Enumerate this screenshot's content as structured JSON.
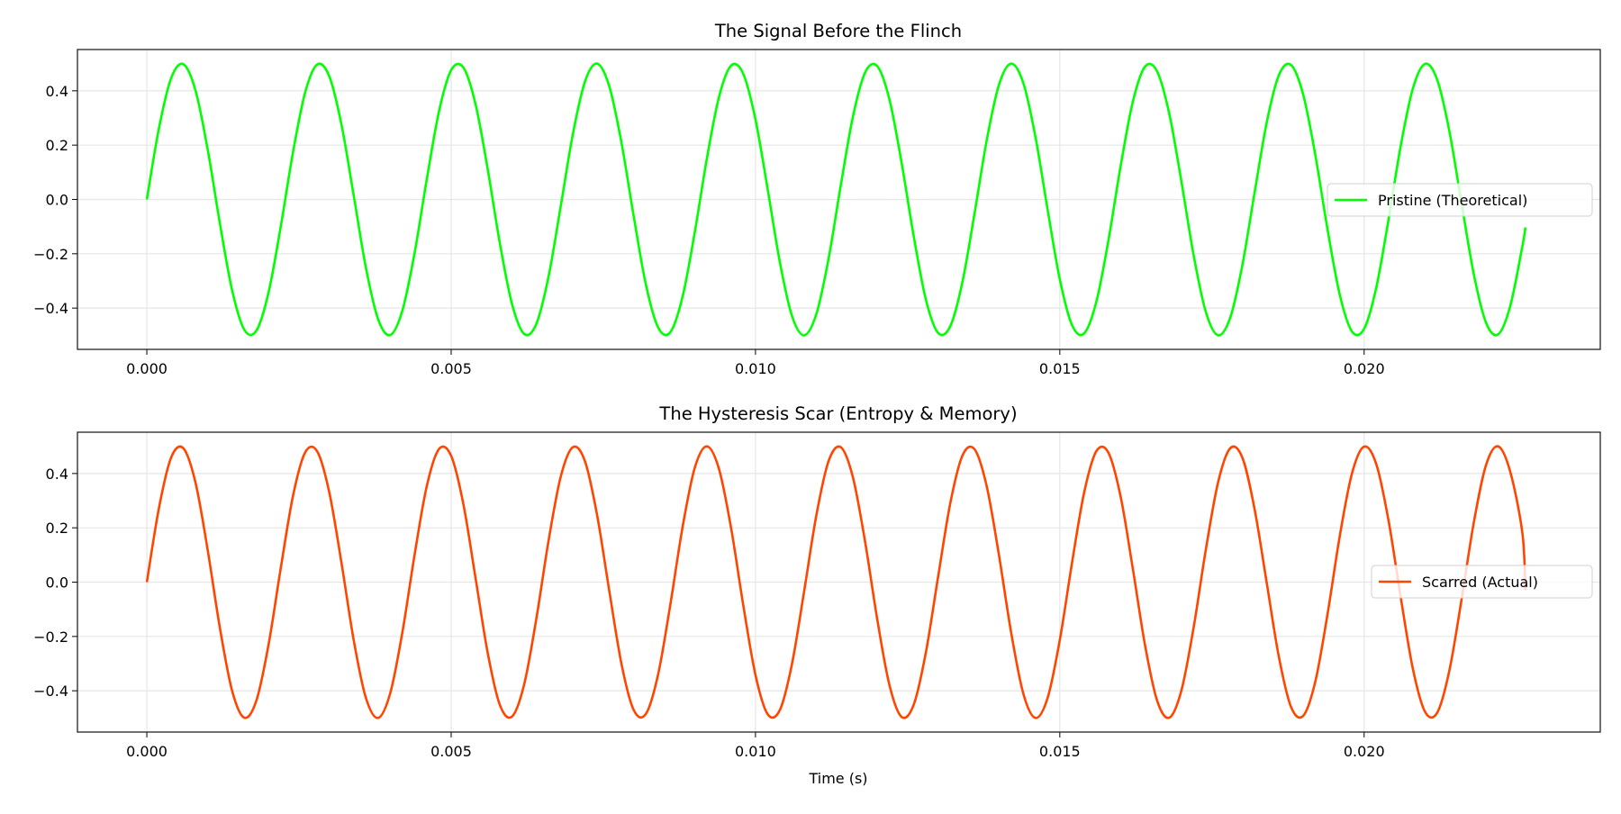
{
  "chart_data": [
    {
      "type": "line",
      "title": "The Signal Before the Flinch",
      "xlabel": "",
      "ylabel": "",
      "xlim": [
        -0.00114,
        0.02388
      ],
      "ylim": [
        -0.552,
        0.552
      ],
      "xticks": [
        "0.000",
        "0.005",
        "0.010",
        "0.015",
        "0.020"
      ],
      "yticks": [
        "−0.4",
        "−0.2",
        "0.0",
        "0.2",
        "0.4"
      ],
      "grid": true,
      "legend_position": "center-right",
      "series": [
        {
          "name": "Pristine (Theoretical)",
          "color": "#00ff00",
          "x_step": 0.0002,
          "y": [
            0,
            0.263,
            0.447,
            0.498,
            0.401,
            0.184,
            -0.088,
            -0.333,
            -0.479,
            -0.483,
            -0.342,
            -0.1,
            0.172,
            0.393,
            0.497,
            0.452,
            0.273,
            0.013,
            -0.252,
            -0.441,
            -0.499,
            -0.408,
            -0.196,
            0.075,
            0.324,
            0.476,
            0.486,
            0.351,
            0.112,
            -0.161,
            -0.385,
            -0.495,
            -0.458,
            -0.284,
            -0.025,
            0.241,
            0.435,
            0.5,
            0.415,
            0.207,
            -0.063,
            -0.314,
            -0.471,
            -0.489,
            -0.36,
            -0.124,
            0.149,
            0.377,
            0.493,
            0.462,
            0.294,
            0.038,
            -0.23,
            -0.429,
            -0.5,
            -0.422,
            -0.219,
            0.05,
            0.304,
            0.467,
            0.491,
            0.369,
            0.136,
            -0.136,
            -0.369,
            -0.491,
            -0.467,
            -0.304,
            -0.05,
            0.219,
            0.422,
            0.5,
            0.429,
            0.23,
            -0.038,
            -0.294,
            -0.462,
            -0.493,
            -0.377,
            -0.149,
            0.124,
            0.36,
            0.489,
            0.471,
            0.314,
            0.063,
            -0.207,
            -0.415,
            -0.5,
            -0.435,
            -0.241,
            0.025,
            0.284,
            0.458,
            0.495,
            0.385,
            0.161,
            -0.112,
            -0.351,
            -0.486,
            -0.476,
            -0.324,
            -0.075,
            0.196,
            0.408,
            0.499,
            0.441,
            0.252,
            -0.013,
            -0.273,
            -0.452,
            -0.497,
            -0.393,
            -0.172
          ],
          "end": [
            0.02265,
            -0.103
          ]
        }
      ]
    },
    {
      "type": "line",
      "title": "The Hysteresis Scar (Entropy & Memory)",
      "xlabel": "Time (s)",
      "ylabel": "",
      "xlim": [
        -0.00114,
        0.02388
      ],
      "ylim": [
        -0.552,
        0.552
      ],
      "xticks": [
        "0.000",
        "0.005",
        "0.010",
        "0.015",
        "0.020"
      ],
      "yticks": [
        "−0.4",
        "−0.2",
        "0.0",
        "0.2",
        "0.4"
      ],
      "grid": true,
      "legend_position": "center-right",
      "series": [
        {
          "name": "Scarred (Actual)",
          "color": "#ff4500",
          "x_step": 0.0002,
          "y": [
            0,
            0.274,
            0.459,
            0.493,
            0.366,
            0.118,
            -0.168,
            -0.399,
            -0.499,
            -0.436,
            -0.23,
            0.051,
            0.316,
            0.477,
            0.481,
            0.328,
            0.068,
            -0.215,
            -0.427,
            -0.5,
            -0.408,
            -0.183,
            0.102,
            0.354,
            0.49,
            0.465,
            0.288,
            0.016,
            -0.26,
            -0.452,
            -0.495,
            -0.376,
            -0.134,
            0.152,
            0.388,
            0.497,
            0.444,
            0.244,
            -0.035,
            -0.303,
            -0.471,
            -0.485,
            -0.34,
            -0.084,
            0.2,
            0.419,
            0.5,
            0.417,
            0.198,
            -0.086,
            -0.342,
            -0.486,
            -0.471,
            -0.301,
            -0.033,
            0.246,
            0.445,
            0.497,
            0.387,
            0.15,
            -0.136,
            -0.378,
            -0.496,
            -0.451,
            -0.258,
            0.019,
            0.29,
            0.466,
            0.489,
            0.352,
            0.1,
            -0.185,
            -0.41,
            -0.5,
            -0.426,
            -0.213,
            0.07,
            0.33,
            0.482,
            0.476,
            0.314,
            0.049,
            -0.232,
            -0.437,
            -0.499,
            -0.397,
            -0.165,
            0.121,
            0.367,
            0.493,
            0.458,
            0.269,
            -0.003,
            -0.276,
            -0.46,
            -0.492,
            -0.364,
            -0.116,
            0.17,
            0.4,
            0.499,
            0.434,
            0.228,
            -0.054,
            -0.318,
            -0.477,
            -0.481,
            -0.326,
            -0.065,
            0.217,
            0.429,
            0.5,
            0.407,
            0.181
          ],
          "end": [
            0.02265,
            -0.03
          ]
        }
      ]
    }
  ]
}
